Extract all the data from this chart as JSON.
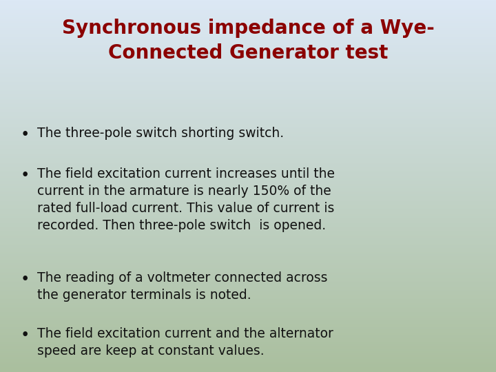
{
  "title_line1": "Synchronous impedance of a Wye-",
  "title_line2": "Connected Generator test",
  "title_color": "#8B0000",
  "title_fontsize": 20,
  "bullet_fontsize": 13.5,
  "bullet_color": "#111111",
  "bullets": [
    "The three-pole switch shorting switch.",
    "The field excitation current increases until the\ncurrent in the armature is nearly 150% of the\nrated full-load current. This value of current is\nrecorded. Then three-pole switch  is opened.",
    "The reading of a voltmeter connected across\nthe generator terminals is noted.",
    "The field excitation current and the alternator\nspeed are keep at constant values."
  ],
  "bg_color_top": "#dce8f5",
  "bg_color_bottom": "#aabf9e",
  "figsize": [
    7.2,
    5.4
  ],
  "dpi": 100
}
